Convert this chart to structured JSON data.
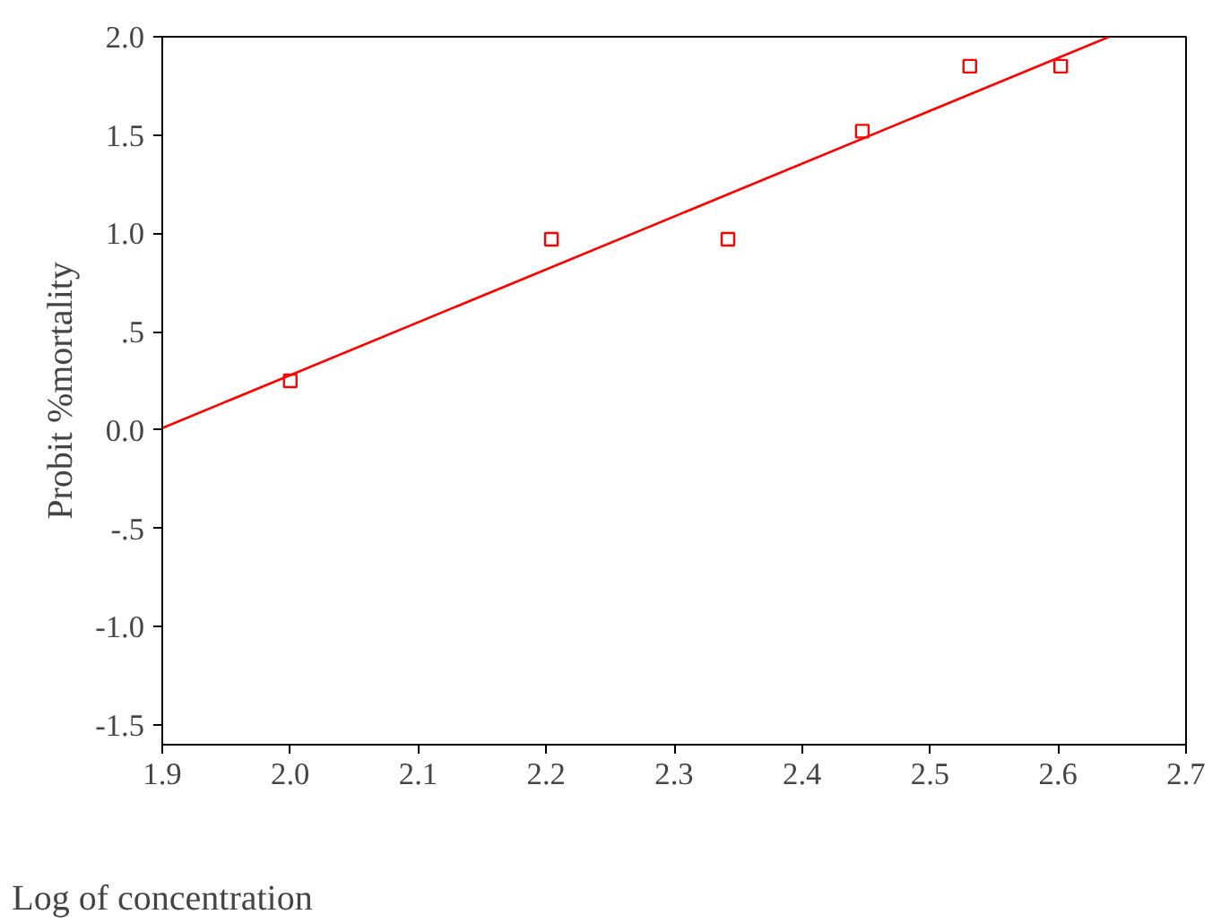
{
  "chart_data": {
    "type": "scatter",
    "xlabel": "Log of concentration",
    "ylabel": "Probit %mortality",
    "series": [
      {
        "color": "#ff0000",
        "marker": "square",
        "x": [
          2.0,
          2.204,
          2.342,
          2.447,
          2.531,
          2.602
        ],
        "values": [
          0.25,
          0.97,
          0.97,
          1.52,
          1.85,
          1.85
        ]
      },
      {
        "type": "line",
        "color": "#ff0000",
        "marker": "none",
        "line_style": "solid",
        "x": [
          1.9,
          2.64
        ],
        "values": [
          0.01,
          2.0
        ]
      }
    ],
    "xlim": [
      1.9,
      2.7
    ],
    "ylim": [
      -1.6,
      2.0
    ],
    "xticks": [
      1.9,
      {
        "value": 2.0,
        "label": "2.0"
      },
      2.1,
      2.2,
      2.3,
      2.4,
      2.5,
      2.6,
      2.7
    ],
    "yticks": [
      {
        "value": 2.0,
        "label": "2.0"
      },
      {
        "value": 1.5,
        "label": "1.5"
      },
      {
        "value": 1.0,
        "label": "1.0"
      },
      {
        "value": 0.5,
        "label": ".5"
      },
      {
        "value": 0.0,
        "label": "0.0"
      },
      {
        "value": -0.5,
        "label": "-.5"
      },
      {
        "value": -1.0,
        "label": "-1.0"
      },
      {
        "value": -1.5,
        "label": "-1.5"
      }
    ],
    "grid": false
  }
}
